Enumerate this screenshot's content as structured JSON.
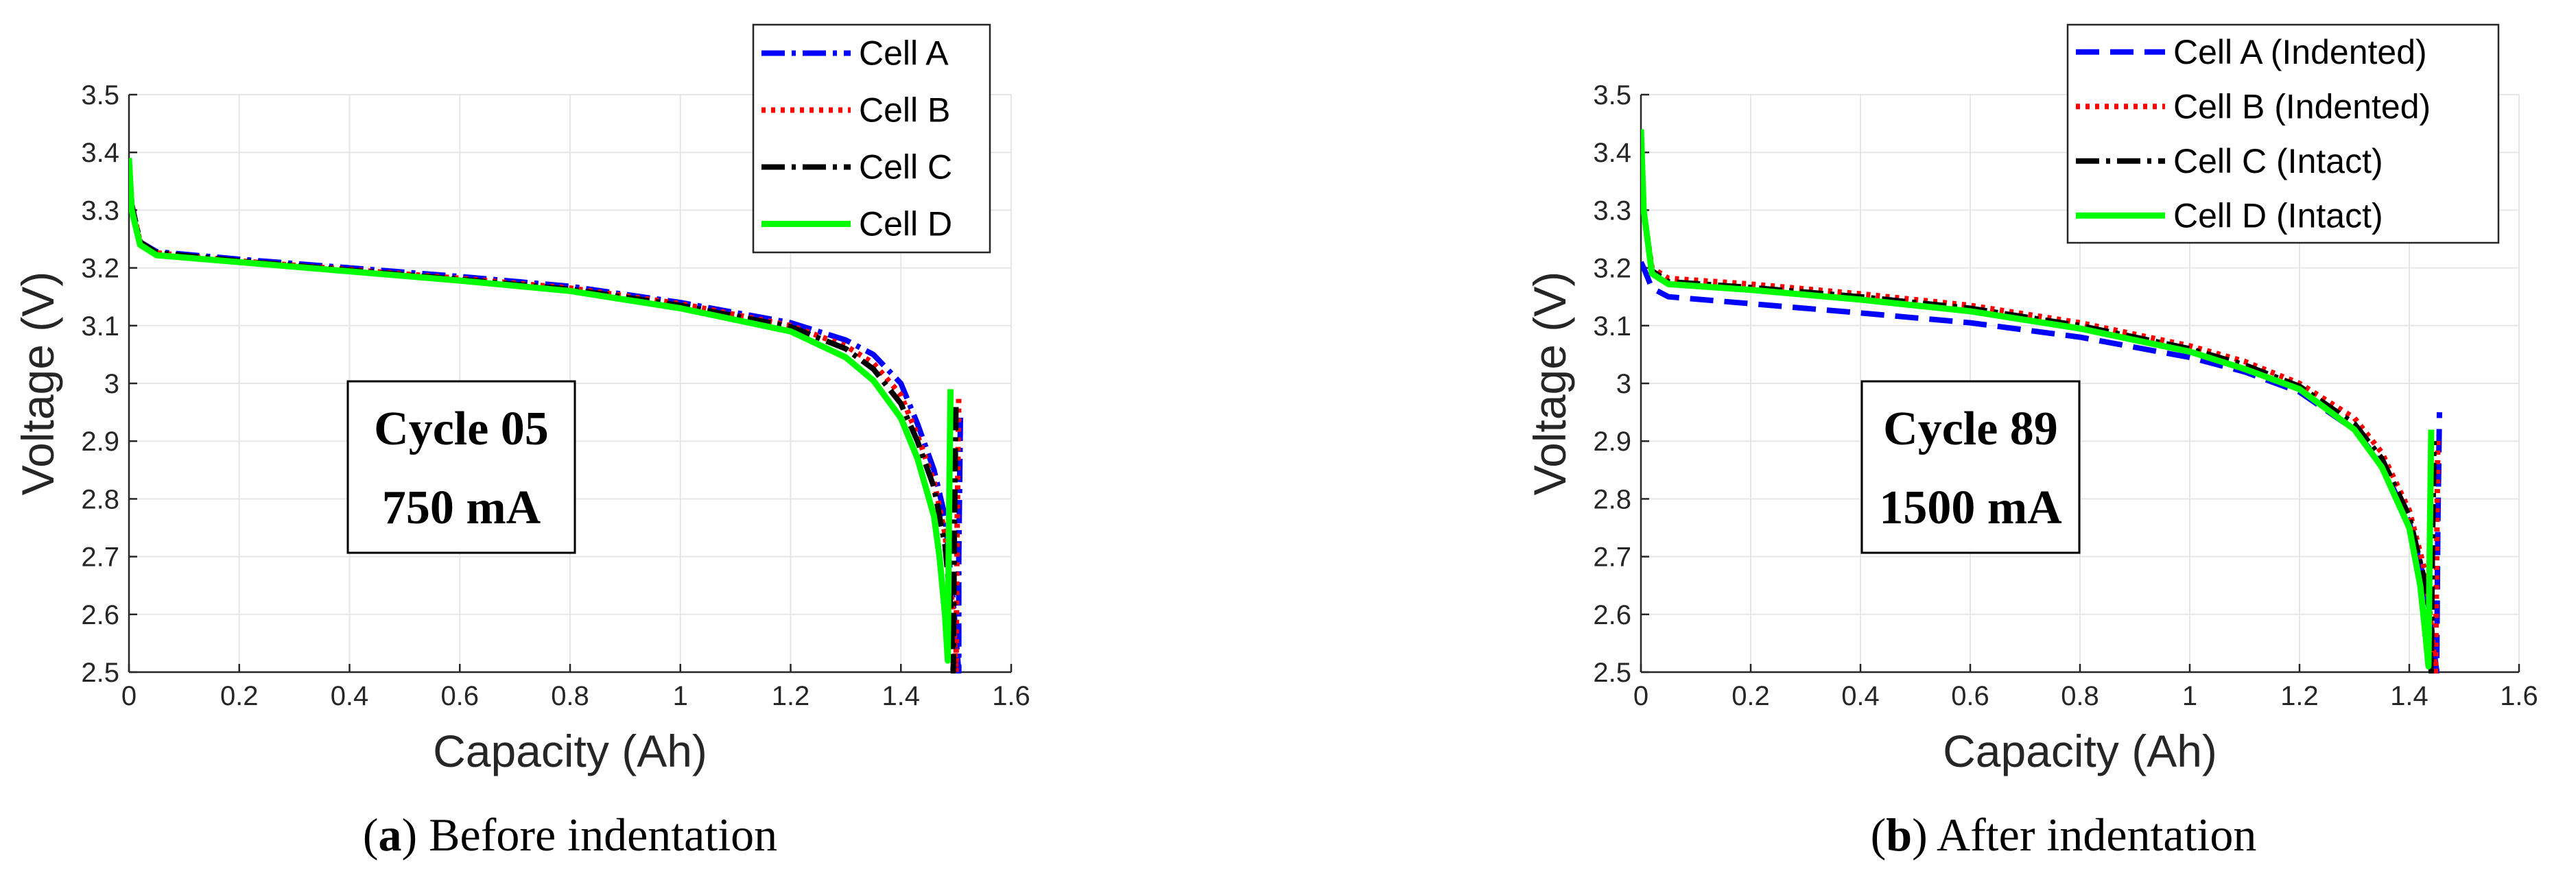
{
  "chart_data": [
    {
      "type": "line",
      "panel_label": "a",
      "caption": "Before indentation",
      "xlabel": "Capacity (Ah)",
      "ylabel": "Voltage (V)",
      "xlim": [
        0,
        1.6
      ],
      "ylim": [
        2.5,
        3.5
      ],
      "xticks": [
        "0",
        "0.2",
        "0.4",
        "0.6",
        "0.8",
        "1",
        "1.2",
        "1.4",
        "1.6"
      ],
      "yticks": [
        "2.5",
        "2.6",
        "2.7",
        "2.8",
        "2.9",
        "3",
        "3.1",
        "3.2",
        "3.3",
        "3.4",
        "3.5"
      ],
      "grid": true,
      "legend_position": "top-right",
      "annotation": [
        "Cycle 05",
        "750 mA"
      ],
      "series": [
        {
          "name": "Cell A",
          "color": "#0000ff",
          "style": "dash-dot",
          "x": [
            0,
            0.005,
            0.02,
            0.05,
            0.2,
            0.4,
            0.6,
            0.8,
            1.0,
            1.2,
            1.3,
            1.35,
            1.4,
            1.43,
            1.46,
            1.48,
            1.495,
            1.505,
            1.505,
            1.508
          ],
          "y": [
            3.39,
            3.31,
            3.245,
            3.228,
            3.215,
            3.2,
            3.185,
            3.168,
            3.14,
            3.105,
            3.075,
            3.05,
            3.0,
            2.93,
            2.85,
            2.77,
            2.62,
            2.5,
            2.7,
            2.95
          ]
        },
        {
          "name": "Cell B",
          "color": "#ff0000",
          "style": "dotted",
          "x": [
            0,
            0.005,
            0.02,
            0.05,
            0.2,
            0.4,
            0.6,
            0.8,
            1.0,
            1.2,
            1.3,
            1.35,
            1.4,
            1.43,
            1.46,
            1.48,
            1.495,
            1.5,
            1.502,
            1.505
          ],
          "y": [
            3.39,
            3.31,
            3.245,
            3.226,
            3.212,
            3.197,
            3.182,
            3.165,
            3.138,
            3.1,
            3.065,
            3.035,
            2.98,
            2.91,
            2.83,
            2.74,
            2.6,
            2.5,
            2.75,
            2.98
          ]
        },
        {
          "name": "Cell C",
          "color": "#000000",
          "style": "dash-dot",
          "x": [
            0,
            0.005,
            0.02,
            0.05,
            0.2,
            0.4,
            0.6,
            0.8,
            1.0,
            1.2,
            1.3,
            1.35,
            1.4,
            1.43,
            1.46,
            1.48,
            1.49,
            1.495,
            1.497,
            1.5
          ],
          "y": [
            3.39,
            3.31,
            3.245,
            3.226,
            3.212,
            3.196,
            3.18,
            3.163,
            3.135,
            3.098,
            3.06,
            3.025,
            2.965,
            2.9,
            2.82,
            2.72,
            2.62,
            2.5,
            2.75,
            2.97
          ]
        },
        {
          "name": "Cell D",
          "color": "#00ff00",
          "style": "solid",
          "x": [
            0,
            0.005,
            0.02,
            0.05,
            0.2,
            0.4,
            0.6,
            0.8,
            1.0,
            1.2,
            1.3,
            1.35,
            1.4,
            1.43,
            1.46,
            1.47,
            1.48,
            1.485,
            1.487,
            1.49
          ],
          "y": [
            3.39,
            3.3,
            3.24,
            3.222,
            3.21,
            3.194,
            3.178,
            3.16,
            3.13,
            3.09,
            3.045,
            3.005,
            2.94,
            2.87,
            2.77,
            2.7,
            2.6,
            2.52,
            2.75,
            2.99
          ]
        }
      ]
    },
    {
      "type": "line",
      "panel_label": "b",
      "caption": "After indentation",
      "xlabel": "Capacity (Ah)",
      "ylabel": "Voltage (V)",
      "xlim": [
        0,
        1.6
      ],
      "ylim": [
        2.5,
        3.5
      ],
      "xticks": [
        "0",
        "0.2",
        "0.4",
        "0.6",
        "0.8",
        "1",
        "1.2",
        "1.4",
        "1.6"
      ],
      "yticks": [
        "2.5",
        "2.6",
        "2.7",
        "2.8",
        "2.9",
        "3",
        "3.1",
        "3.2",
        "3.3",
        "3.4",
        "3.5"
      ],
      "grid": true,
      "legend_position": "top-right",
      "annotation": [
        "Cycle 89",
        "1500 mA"
      ],
      "series": [
        {
          "name": "Cell A (Indented)",
          "color": "#0000ff",
          "style": "dashed",
          "x": [
            0,
            0.005,
            0.02,
            0.05,
            0.2,
            0.4,
            0.6,
            0.8,
            1.0,
            1.1,
            1.2,
            1.3,
            1.35,
            1.4,
            1.43,
            1.44,
            1.45,
            1.452,
            1.455
          ],
          "y": [
            3.21,
            3.2,
            3.165,
            3.15,
            3.138,
            3.122,
            3.105,
            3.08,
            3.045,
            3.02,
            2.985,
            2.92,
            2.86,
            2.76,
            2.65,
            2.58,
            2.5,
            2.75,
            2.95
          ]
        },
        {
          "name": "Cell B (Indented)",
          "color": "#ff0000",
          "style": "dotted",
          "x": [
            0,
            0.005,
            0.02,
            0.05,
            0.2,
            0.4,
            0.6,
            0.8,
            1.0,
            1.1,
            1.2,
            1.3,
            1.35,
            1.4,
            1.43,
            1.44,
            1.448,
            1.45,
            1.452
          ],
          "y": [
            3.42,
            3.3,
            3.2,
            3.182,
            3.172,
            3.155,
            3.135,
            3.105,
            3.065,
            3.038,
            3.0,
            2.94,
            2.88,
            2.78,
            2.67,
            2.58,
            2.5,
            2.7,
            2.91
          ]
        },
        {
          "name": "Cell C (Intact)",
          "color": "#000000",
          "style": "dash-dot",
          "x": [
            0,
            0.005,
            0.02,
            0.05,
            0.2,
            0.4,
            0.6,
            0.8,
            1.0,
            1.1,
            1.2,
            1.3,
            1.35,
            1.4,
            1.425,
            1.435,
            1.44,
            1.442,
            1.445
          ],
          "y": [
            3.43,
            3.3,
            3.195,
            3.176,
            3.166,
            3.15,
            3.13,
            3.1,
            3.06,
            3.032,
            2.995,
            2.93,
            2.87,
            2.77,
            2.67,
            2.58,
            2.5,
            2.7,
            2.9
          ]
        },
        {
          "name": "Cell D (Intact)",
          "color": "#00ff00",
          "style": "solid",
          "x": [
            0,
            0.005,
            0.02,
            0.05,
            0.2,
            0.4,
            0.6,
            0.8,
            1.0,
            1.1,
            1.2,
            1.3,
            1.35,
            1.4,
            1.42,
            1.43,
            1.435,
            1.437,
            1.44
          ],
          "y": [
            3.44,
            3.3,
            3.19,
            3.172,
            3.162,
            3.145,
            3.125,
            3.095,
            3.055,
            3.025,
            2.99,
            2.92,
            2.855,
            2.75,
            2.65,
            2.56,
            2.51,
            2.7,
            2.92
          ]
        }
      ]
    }
  ]
}
